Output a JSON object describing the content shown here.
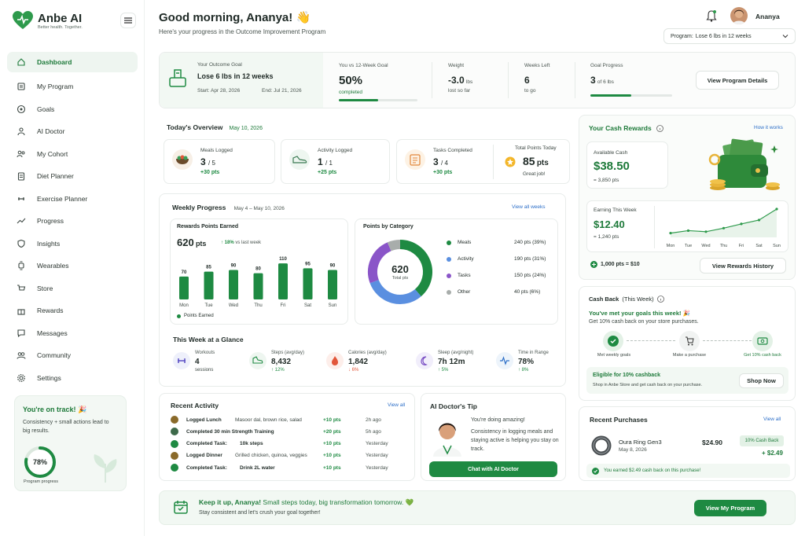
{
  "brand": {
    "name": "Anbe AI",
    "tagline": "Better health. Together."
  },
  "nav": [
    {
      "label": "Dashboard",
      "icon": "home-icon",
      "active": true
    },
    {
      "label": "My Program",
      "icon": "program-icon"
    },
    {
      "label": "Goals",
      "icon": "target-icon"
    },
    {
      "label": "AI Doctor",
      "icon": "doctor-icon"
    },
    {
      "label": "My Cohort",
      "icon": "cohort-icon"
    },
    {
      "label": "Diet Planner",
      "icon": "diet-icon"
    },
    {
      "label": "Exercise Planner",
      "icon": "exercise-icon"
    },
    {
      "label": "Progress",
      "icon": "trend-icon"
    },
    {
      "label": "Insights",
      "icon": "shield-icon"
    },
    {
      "label": "Wearables",
      "icon": "watch-icon"
    },
    {
      "label": "Store",
      "icon": "cart-icon"
    },
    {
      "label": "Rewards",
      "icon": "gift-icon"
    },
    {
      "label": "Messages",
      "icon": "message-icon"
    },
    {
      "label": "Community",
      "icon": "community-icon"
    },
    {
      "label": "Settings",
      "icon": "gear-icon"
    }
  ],
  "track": {
    "title": "You're on track! 🎉",
    "text": "Consistency + small actions lead to big results.",
    "percent": 78,
    "percent_label": "78%",
    "sub": "Program progress"
  },
  "header": {
    "greeting": "Good morning, Ananya! 👋",
    "subtitle": "Here's your progress in the Outcome Improvement Program",
    "user": "Ananya",
    "program_label": "Program:",
    "program_value": "Lose 6 lbs in 12 weeks"
  },
  "goal": {
    "label": "Your Outcome Goal",
    "title": "Lose 6 lbs in 12 weeks",
    "start": "Start: Apr 28, 2026",
    "end": "End: Jul 21, 2026",
    "vs_label": "You vs 12-Week Goal",
    "vs_value": "50%",
    "vs_sub": "completed",
    "vs_progress": 0.5,
    "weight_label": "Weight",
    "weight_value": "-3.0",
    "weight_unit": "lbs",
    "weight_sub": "lost so far",
    "weeks_label": "Weeks Left",
    "weeks_value": "6",
    "weeks_sub": "to go",
    "gp_label": "Goal Progress",
    "gp_value": "3",
    "gp_unit": "of 6 lbs",
    "gp_progress": 0.5,
    "button": "View Program Details"
  },
  "overview": {
    "title": "Today's Overview",
    "date": "May 10, 2026",
    "meals": {
      "label": "Meals Logged",
      "value": "3",
      "total": "/ 5",
      "pts": "+30 pts"
    },
    "activity": {
      "label": "Activity Logged",
      "value": "1",
      "total": "/ 1",
      "pts": "+25 pts"
    },
    "tasks": {
      "label": "Tasks Completed",
      "value": "3",
      "total": "/ 4",
      "pts": "+30 pts"
    },
    "points": {
      "label": "Total Points Today",
      "value": "85",
      "unit": "pts",
      "sub": "Great job!"
    }
  },
  "weekly": {
    "title": "Weekly Progress",
    "range": "May 4 – May 10, 2026",
    "link": "View all weeks",
    "rewards_title": "Rewards Points Earned",
    "rewards_value": "620",
    "rewards_unit": "pts",
    "rewards_change": "↑ 18%",
    "rewards_change_sub": "vs last week",
    "legend": "Points Earned",
    "cat_title": "Points by Category",
    "donut_value": "620",
    "donut_sub": "Total pts",
    "glance_title": "This Week at a Glance",
    "glance": [
      {
        "label": "Workouts",
        "value": "4",
        "sub": "sessions",
        "icon": "dumbbell-icon",
        "bg": "#eef0fb",
        "color": "#5b4fc4"
      },
      {
        "label": "Steps (avg/day)",
        "value": "8,432",
        "sub": "↑ 12%",
        "icon": "shoe-icon",
        "bg": "#eef6f0",
        "color": "#1e8a42"
      },
      {
        "label": "Calories (avg/day)",
        "value": "1,842",
        "sub": "↓ 6%",
        "icon": "flame-icon",
        "bg": "#fdeeea",
        "color": "#e2563a"
      },
      {
        "label": "Sleep (avg/night)",
        "value": "7h 12m",
        "sub": "↑ 5%",
        "icon": "moon-icon",
        "bg": "#f1eefb",
        "color": "#7a4fc4"
      },
      {
        "label": "Time in Range",
        "value": "78%",
        "sub": "↑ 8%",
        "icon": "pulse-icon",
        "bg": "#edf4fb",
        "color": "#2d6fc8"
      }
    ]
  },
  "chart_data": [
    {
      "type": "bar",
      "categories": [
        "Mon",
        "Tue",
        "Wed",
        "Thu",
        "Fri",
        "Sat",
        "Sun"
      ],
      "values": [
        70,
        85,
        90,
        80,
        110,
        95,
        90
      ],
      "ylim": [
        0,
        120
      ],
      "series": [
        {
          "name": "Points Earned",
          "values": [
            70,
            85,
            90,
            80,
            110,
            95,
            90
          ]
        }
      ]
    },
    {
      "type": "pie",
      "categories": [
        "Meals",
        "Activity",
        "Tasks",
        "Other"
      ],
      "values": [
        240,
        190,
        150,
        40
      ],
      "labels": [
        "240 pts (39%)",
        "190 pts (31%)",
        "150 pts (24%)",
        "40 pts (6%)"
      ],
      "colors": [
        "#1e8a42",
        "#5a8fe0",
        "#8a55c8",
        "#a8adab"
      ]
    },
    {
      "type": "line",
      "categories": [
        "Mon",
        "Tue",
        "Wed",
        "Thu",
        "Fri",
        "Sat",
        "Sun"
      ],
      "values": [
        1.2,
        1.9,
        1.6,
        2.6,
        3.8,
        4.9,
        8.0
      ]
    }
  ],
  "activity": {
    "title": "Recent Activity",
    "link": "View all",
    "rows": [
      {
        "title": "Logged Lunch",
        "desc": "Masoor dal, brown rice, salad",
        "pts": "+10 pts",
        "time": "2h ago",
        "color": "#8a6a2a"
      },
      {
        "title": "Completed 30 min Strength Training",
        "desc": "",
        "pts": "+20 pts",
        "time": "5h ago",
        "color": "#3d6a4a"
      },
      {
        "title": "Completed Task:",
        "desc": "10k steps",
        "pts": "+10 pts",
        "time": "Yesterday",
        "color": "#1e8a42"
      },
      {
        "title": "Logged Dinner",
        "desc": "Grilled chicken, quinoa, veggies",
        "pts": "+10 pts",
        "time": "Yesterday",
        "color": "#8a6a2a"
      },
      {
        "title": "Completed Task:",
        "desc": "Drink 2L water",
        "pts": "+10 pts",
        "time": "Yesterday",
        "color": "#1e8a42"
      }
    ]
  },
  "tip": {
    "title": "AI Doctor's Tip",
    "line1": "You're doing amazing!",
    "text": "Consistency in logging meals and staying active is helping you stay on track.",
    "button": "Chat with AI Doctor"
  },
  "cash": {
    "title": "Your Cash Rewards",
    "link": "How it works",
    "available_label": "Available Cash",
    "available_value": "$38.50",
    "available_pts": "= 3,850 pts",
    "week_label": "Earning This Week",
    "week_value": "$12.40",
    "week_pts": "= 1,240 pts",
    "rate": "1,000 pts = $10",
    "button": "View Rewards History"
  },
  "cashback": {
    "title": "Cash Back",
    "title_sub": "(This Week)",
    "met": "You've met your goals this week! 🎉",
    "offer": "Get 10% cash back on your store purchases.",
    "steps": [
      "Met weekly goals",
      "Make a purchase",
      "Get 10% cash back"
    ],
    "eligible_title": "Eligible for 10% cashback",
    "eligible_sub": "Shop in Anbe Store and get cash back on your purchase.",
    "button": "Shop Now"
  },
  "purchases": {
    "title": "Recent Purchases",
    "link": "View all",
    "item": "Oura Ring Gen3",
    "date": "May 8, 2026",
    "price": "$24.90",
    "badge": "10% Cash Back",
    "earned": "+ $2.49",
    "note": "You earned $2.49 cash back on this purchase!"
  },
  "banner": {
    "title": "Keep it up, Ananya!",
    "title_rest": "Small steps today, big transformation tomorrow. 💚",
    "sub": "Stay consistent and let's crush your goal together!",
    "button": "View My Program"
  }
}
